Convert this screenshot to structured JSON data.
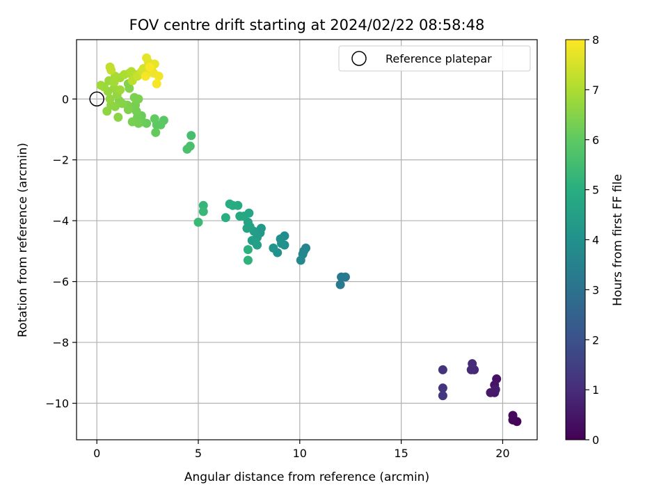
{
  "chart_data": {
    "type": "scatter",
    "title": "FOV centre drift starting at 2024/02/22 08:58:48",
    "xlabel": "Angular distance from reference (arcmin)",
    "ylabel": "Rotation from reference (arcmin)",
    "xlim": [
      -1,
      21.7
    ],
    "ylim": [
      -11.2,
      1.95
    ],
    "xticks": [
      0,
      5,
      10,
      15,
      20
    ],
    "yticks": [
      0,
      -2,
      -4,
      -6,
      -8,
      -10
    ],
    "xtick_labels": [
      "0",
      "5",
      "10",
      "15",
      "20"
    ],
    "ytick_labels": [
      "0",
      "−2",
      "−4",
      "−6",
      "−8",
      "−10"
    ],
    "grid": true,
    "legend": {
      "position": "top-right",
      "label": "Reference platepar"
    },
    "reference_point": {
      "x": 0,
      "y": 0
    },
    "colorbar": {
      "label": "Hours from first FF file",
      "range": [
        0,
        8
      ],
      "ticks": [
        0,
        1,
        2,
        3,
        4,
        5,
        6,
        7,
        8
      ],
      "tick_labels": [
        "0",
        "1",
        "2",
        "3",
        "4",
        "5",
        "6",
        "7",
        "8"
      ],
      "colormap": "viridis"
    },
    "points": [
      {
        "x": 20.7,
        "y": -10.6,
        "c": 0.1
      },
      {
        "x": 20.5,
        "y": -10.55,
        "c": 0.15
      },
      {
        "x": 20.5,
        "y": -10.4,
        "c": 0.2
      },
      {
        "x": 19.7,
        "y": -9.2,
        "c": 0.4
      },
      {
        "x": 19.6,
        "y": -9.4,
        "c": 0.45
      },
      {
        "x": 19.6,
        "y": -9.65,
        "c": 0.5
      },
      {
        "x": 19.4,
        "y": -9.65,
        "c": 0.55
      },
      {
        "x": 19.65,
        "y": -9.55,
        "c": 0.6
      },
      {
        "x": 18.6,
        "y": -8.9,
        "c": 0.9
      },
      {
        "x": 18.45,
        "y": -8.9,
        "c": 0.95
      },
      {
        "x": 18.5,
        "y": -8.7,
        "c": 1.0
      },
      {
        "x": 17.05,
        "y": -8.9,
        "c": 1.2
      },
      {
        "x": 17.05,
        "y": -9.5,
        "c": 1.25
      },
      {
        "x": 17.05,
        "y": -9.75,
        "c": 1.3
      },
      {
        "x": 12.25,
        "y": -5.85,
        "c": 3.2
      },
      {
        "x": 12.05,
        "y": -5.85,
        "c": 3.25
      },
      {
        "x": 12.0,
        "y": -6.1,
        "c": 3.3
      },
      {
        "x": 10.3,
        "y": -4.9,
        "c": 3.6
      },
      {
        "x": 10.2,
        "y": -5.0,
        "c": 3.65
      },
      {
        "x": 10.15,
        "y": -5.1,
        "c": 3.7
      },
      {
        "x": 10.05,
        "y": -5.3,
        "c": 3.75
      },
      {
        "x": 9.25,
        "y": -4.5,
        "c": 3.9
      },
      {
        "x": 9.25,
        "y": -4.8,
        "c": 3.95
      },
      {
        "x": 9.05,
        "y": -4.6,
        "c": 4.0
      },
      {
        "x": 9.1,
        "y": -4.75,
        "c": 4.05
      },
      {
        "x": 8.9,
        "y": -5.05,
        "c": 4.1
      },
      {
        "x": 8.7,
        "y": -4.9,
        "c": 4.15
      },
      {
        "x": 8.1,
        "y": -4.25,
        "c": 4.3
      },
      {
        "x": 8.05,
        "y": -4.4,
        "c": 4.35
      },
      {
        "x": 7.9,
        "y": -4.55,
        "c": 4.4
      },
      {
        "x": 7.75,
        "y": -4.35,
        "c": 4.45
      },
      {
        "x": 7.65,
        "y": -4.65,
        "c": 4.5
      },
      {
        "x": 7.8,
        "y": -4.7,
        "c": 4.5
      },
      {
        "x": 7.9,
        "y": -4.8,
        "c": 4.55
      },
      {
        "x": 7.55,
        "y": -4.2,
        "c": 4.6
      },
      {
        "x": 7.45,
        "y": -4.05,
        "c": 4.65
      },
      {
        "x": 7.4,
        "y": -4.25,
        "c": 4.7
      },
      {
        "x": 7.5,
        "y": -3.75,
        "c": 4.75
      },
      {
        "x": 7.25,
        "y": -3.85,
        "c": 4.8
      },
      {
        "x": 7.05,
        "y": -3.85,
        "c": 4.85
      },
      {
        "x": 6.95,
        "y": -3.5,
        "c": 4.9
      },
      {
        "x": 6.7,
        "y": -3.5,
        "c": 4.95
      },
      {
        "x": 6.55,
        "y": -3.45,
        "c": 5.0
      },
      {
        "x": 6.35,
        "y": -3.9,
        "c": 5.05
      },
      {
        "x": 7.45,
        "y": -4.95,
        "c": 5.1
      },
      {
        "x": 7.45,
        "y": -5.3,
        "c": 5.15
      },
      {
        "x": 5.25,
        "y": -3.5,
        "c": 5.3
      },
      {
        "x": 5.25,
        "y": -3.7,
        "c": 5.35
      },
      {
        "x": 5.0,
        "y": -4.05,
        "c": 5.4
      },
      {
        "x": 4.65,
        "y": -1.2,
        "c": 5.6
      },
      {
        "x": 4.6,
        "y": -1.55,
        "c": 5.65
      },
      {
        "x": 4.45,
        "y": -1.65,
        "c": 5.7
      },
      {
        "x": 3.3,
        "y": -0.7,
        "c": 5.95
      },
      {
        "x": 3.15,
        "y": -0.85,
        "c": 6.0
      },
      {
        "x": 2.95,
        "y": -0.85,
        "c": 6.0
      },
      {
        "x": 2.85,
        "y": -0.65,
        "c": 6.05
      },
      {
        "x": 2.9,
        "y": -1.1,
        "c": 6.1
      },
      {
        "x": 2.45,
        "y": -0.8,
        "c": 6.15
      },
      {
        "x": 2.2,
        "y": -0.55,
        "c": 6.2
      },
      {
        "x": 2.25,
        "y": -0.75,
        "c": 6.2
      },
      {
        "x": 2.0,
        "y": -0.6,
        "c": 6.25
      },
      {
        "x": 1.95,
        "y": -0.4,
        "c": 6.3
      },
      {
        "x": 2.05,
        "y": -0.8,
        "c": 6.3
      },
      {
        "x": 1.75,
        "y": -0.75,
        "c": 6.35
      },
      {
        "x": 1.9,
        "y": -0.2,
        "c": 6.35
      },
      {
        "x": 2.05,
        "y": 0.0,
        "c": 6.4
      },
      {
        "x": 1.85,
        "y": 0.05,
        "c": 6.4
      },
      {
        "x": 1.5,
        "y": -0.2,
        "c": 6.45
      },
      {
        "x": 1.55,
        "y": -0.35,
        "c": 6.45
      },
      {
        "x": 1.6,
        "y": 0.35,
        "c": 6.5
      },
      {
        "x": 1.55,
        "y": 0.5,
        "c": 6.5
      },
      {
        "x": 1.25,
        "y": -0.15,
        "c": 6.55
      },
      {
        "x": 1.1,
        "y": -0.05,
        "c": 6.55
      },
      {
        "x": 1.05,
        "y": -0.6,
        "c": 6.6
      },
      {
        "x": 0.9,
        "y": -0.25,
        "c": 6.6
      },
      {
        "x": 0.7,
        "y": -0.2,
        "c": 6.65
      },
      {
        "x": 0.5,
        "y": -0.4,
        "c": 6.65
      },
      {
        "x": 0.65,
        "y": 0.0,
        "c": 6.7
      },
      {
        "x": 1.0,
        "y": 0.15,
        "c": 6.7
      },
      {
        "x": 0.85,
        "y": 0.35,
        "c": 6.75
      },
      {
        "x": 0.55,
        "y": 0.25,
        "c": 6.75
      },
      {
        "x": 0.6,
        "y": 0.6,
        "c": 6.8
      },
      {
        "x": 0.35,
        "y": 0.4,
        "c": 6.8
      },
      {
        "x": 0.2,
        "y": 0.45,
        "c": 6.85
      },
      {
        "x": 1.15,
        "y": 0.3,
        "c": 6.85
      },
      {
        "x": 1.15,
        "y": 0.7,
        "c": 6.9
      },
      {
        "x": 0.85,
        "y": 0.55,
        "c": 6.9
      },
      {
        "x": 0.9,
        "y": 0.75,
        "c": 6.95
      },
      {
        "x": 1.35,
        "y": 0.8,
        "c": 7.0
      },
      {
        "x": 1.6,
        "y": 0.85,
        "c": 7.05
      },
      {
        "x": 1.7,
        "y": 0.9,
        "c": 7.1
      },
      {
        "x": 1.9,
        "y": 0.8,
        "c": 7.15
      },
      {
        "x": 1.75,
        "y": 0.6,
        "c": 7.2
      },
      {
        "x": 0.65,
        "y": 1.05,
        "c": 7.25
      },
      {
        "x": 0.7,
        "y": 0.95,
        "c": 7.3
      },
      {
        "x": 2.0,
        "y": 0.75,
        "c": 7.35
      },
      {
        "x": 2.2,
        "y": 0.9,
        "c": 7.45
      },
      {
        "x": 2.3,
        "y": 1.0,
        "c": 7.5
      },
      {
        "x": 2.5,
        "y": 0.85,
        "c": 7.55
      },
      {
        "x": 2.55,
        "y": 1.2,
        "c": 7.6
      },
      {
        "x": 2.7,
        "y": 0.95,
        "c": 7.65
      },
      {
        "x": 2.45,
        "y": 1.35,
        "c": 7.7
      },
      {
        "x": 2.85,
        "y": 1.15,
        "c": 7.75
      },
      {
        "x": 2.8,
        "y": 0.85,
        "c": 7.8
      },
      {
        "x": 3.05,
        "y": 0.75,
        "c": 7.85
      },
      {
        "x": 2.95,
        "y": 0.5,
        "c": 7.9
      },
      {
        "x": 2.4,
        "y": 0.75,
        "c": 7.9
      },
      {
        "x": 2.6,
        "y": 1.05,
        "c": 7.95
      }
    ]
  }
}
